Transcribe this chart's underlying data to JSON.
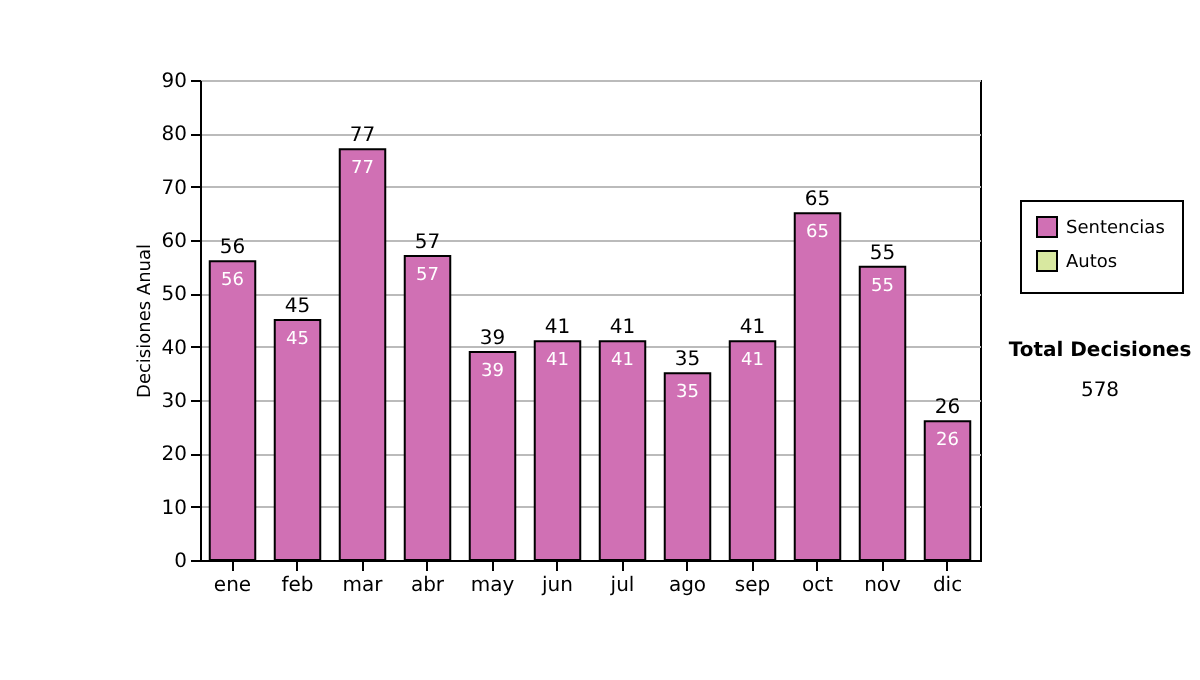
{
  "chart_data": {
    "type": "bar",
    "ylabel": "Decisiones Anual",
    "categories": [
      "ene",
      "feb",
      "mar",
      "abr",
      "may",
      "jun",
      "jul",
      "ago",
      "sep",
      "oct",
      "nov",
      "dic"
    ],
    "series": [
      {
        "name": "Sentencias",
        "color": "#d070b4",
        "values": [
          56,
          45,
          77,
          57,
          39,
          41,
          41,
          35,
          41,
          65,
          55,
          26
        ],
        "value_labels": [
          "56",
          "45",
          "77",
          "57",
          "39",
          "41",
          "41",
          "35",
          "41",
          "65",
          "55",
          "26"
        ]
      },
      {
        "name": "Autos",
        "color": "#d8e8a0",
        "values": [
          0,
          0,
          0,
          0,
          0,
          0,
          0,
          0,
          0,
          0,
          0,
          0
        ]
      }
    ],
    "stacked": true,
    "totals": [
      "56",
      "45",
      "77",
      "57",
      "39",
      "41",
      "41",
      "35",
      "41",
      "65",
      "55",
      "26"
    ],
    "ylim": [
      0,
      90
    ],
    "yticks": [
      0,
      10,
      20,
      30,
      40,
      50,
      60,
      70,
      80,
      90
    ],
    "grid": "y",
    "legend": "right",
    "annotations": [
      "Total Decisiones",
      "578"
    ]
  }
}
